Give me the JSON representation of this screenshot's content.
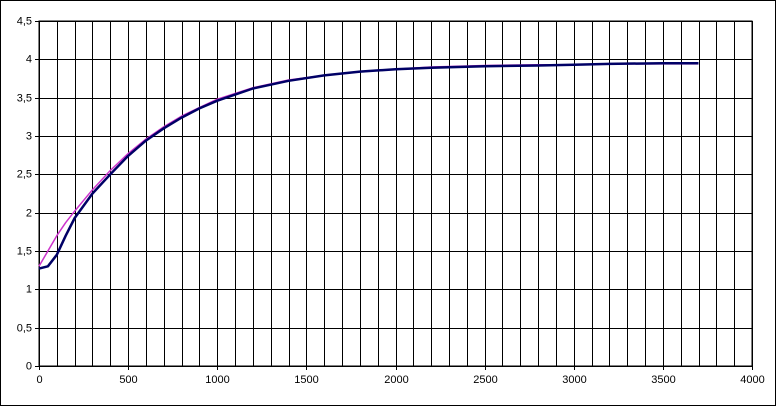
{
  "chart_data": {
    "type": "line",
    "x": [
      0,
      50,
      100,
      150,
      200,
      300,
      400,
      500,
      600,
      700,
      800,
      900,
      1000,
      1200,
      1400,
      1600,
      1800,
      2000,
      2200,
      2500,
      2800,
      3000,
      3200,
      3500,
      3700
    ],
    "series": [
      {
        "color": "#cc33cc",
        "values": [
          1.3,
          1.5,
          1.7,
          1.87,
          2.02,
          2.3,
          2.55,
          2.77,
          2.96,
          3.12,
          3.26,
          3.37,
          3.48,
          3.63,
          3.73,
          3.79,
          3.84,
          3.87,
          3.9,
          3.92,
          3.93,
          3.93,
          3.94,
          3.94,
          3.94
        ]
      },
      {
        "color": "#000066",
        "values": [
          1.27,
          1.3,
          1.45,
          1.7,
          1.93,
          2.25,
          2.5,
          2.74,
          2.94,
          3.1,
          3.24,
          3.36,
          3.46,
          3.62,
          3.72,
          3.79,
          3.84,
          3.87,
          3.89,
          3.91,
          3.92,
          3.93,
          3.94,
          3.95,
          3.95
        ]
      }
    ],
    "xlim": [
      0,
      4000
    ],
    "xticks": [
      0,
      500,
      1000,
      1500,
      2000,
      2500,
      3000,
      3500,
      4000
    ],
    "x_gridlines": [
      100,
      200,
      300,
      400,
      600,
      700,
      800,
      900,
      1100,
      1200,
      1300,
      1400,
      1600,
      1700,
      1800,
      1900,
      2100,
      2200,
      2300,
      2400,
      2600,
      2700,
      2800,
      2900,
      3100,
      3200,
      3300,
      3400,
      3600,
      3700,
      3800,
      3900
    ],
    "ylim": [
      0,
      4.5
    ],
    "yticks": [
      0,
      {
        "value": 0.5,
        "label": "0,5"
      },
      1,
      {
        "value": 1.5,
        "label": "1,5"
      },
      2,
      {
        "value": 2.5,
        "label": "2,5"
      },
      3,
      {
        "value": 3.5,
        "label": "3,5"
      },
      4,
      {
        "value": 4.5,
        "label": "4,5"
      }
    ],
    "grid": true
  }
}
